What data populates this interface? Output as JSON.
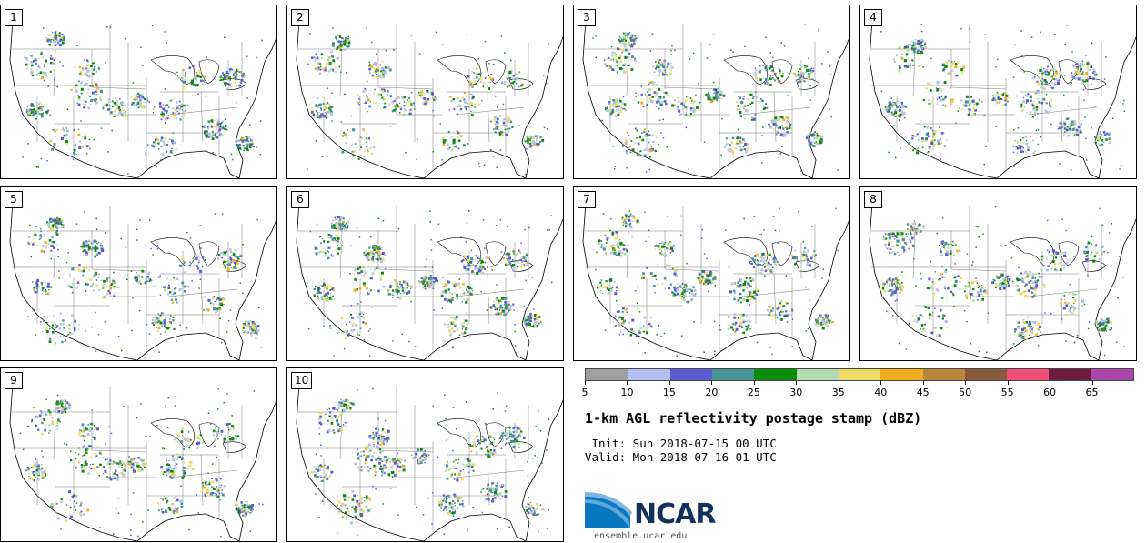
{
  "panels": [
    {
      "label": "1"
    },
    {
      "label": "2"
    },
    {
      "label": "3"
    },
    {
      "label": "4"
    },
    {
      "label": "5"
    },
    {
      "label": "6"
    },
    {
      "label": "7"
    },
    {
      "label": "8"
    },
    {
      "label": "9"
    },
    {
      "label": "10"
    }
  ],
  "colorbar": {
    "colors": [
      "#a0a0a0",
      "#b4bef0",
      "#5a5ad2",
      "#4a9496",
      "#0a8c0a",
      "#b4dcb4",
      "#f0dc64",
      "#f0af1e",
      "#b9873c",
      "#8a5a3c",
      "#f05078",
      "#6e1e3c",
      "#aa46aa"
    ],
    "ticks": [
      "5",
      "10",
      "15",
      "20",
      "25",
      "30",
      "35",
      "40",
      "45",
      "50",
      "55",
      "60",
      "65"
    ]
  },
  "title": "1-km AGL reflectivity postage stamp (dBZ)",
  "init": " Init: Sun 2018-07-15 00 UTC",
  "valid": "Valid: Mon 2018-07-16 01 UTC",
  "logo": {
    "text": "NCAR",
    "url": "ensemble.ucar.edu"
  }
}
